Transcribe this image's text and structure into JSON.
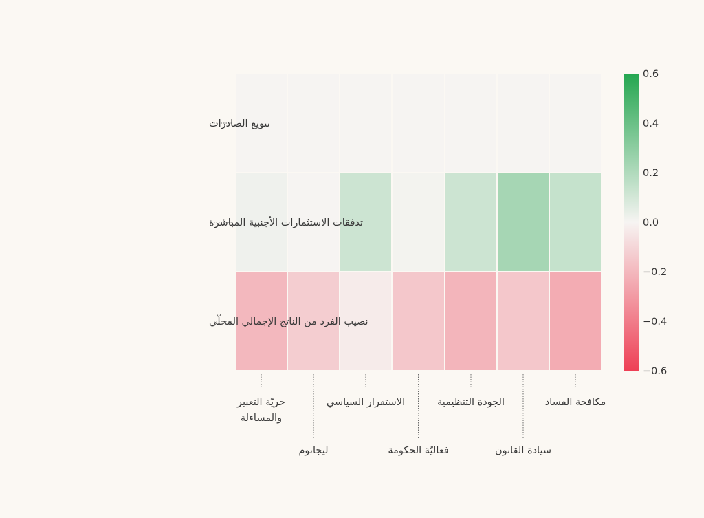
{
  "chart_data": {
    "type": "heatmap",
    "rows": [
      "تنويع الصادرات",
      "تدفقات الاستثمارات الأجنبية المباشرة",
      "نصيب الفرد من الناتج الإجمالي المحلّي"
    ],
    "columns": [
      "حريّة التعبير والمساءلة",
      "ليجاتوم",
      "الاستقرار السياسي",
      "فعاليّة الحكومة",
      "الجودة التنظيمية",
      "سيادة القانون",
      "مكافحة الفساد"
    ],
    "values": [
      [
        0.0,
        0.0,
        0.0,
        0.0,
        0.0,
        0.0,
        0.0
      ],
      [
        0.02,
        0.0,
        0.12,
        0.01,
        0.12,
        0.23,
        0.14
      ],
      [
        -0.2,
        -0.13,
        -0.03,
        -0.15,
        -0.21,
        -0.15,
        -0.24
      ]
    ],
    "colorbar": {
      "min": -0.6,
      "max": 0.6,
      "ticks": [
        0.6,
        0.4,
        0.2,
        0.0,
        -0.2,
        -0.4,
        -0.6
      ],
      "tick_labels": [
        "0.6",
        "0.4",
        "0.2",
        "0.0",
        "−0.2",
        "−0.4",
        "−0.6"
      ],
      "colors": {
        "negative": "#ee4055",
        "neutral": "#f6f4f2",
        "positive": "#24a650"
      }
    }
  }
}
